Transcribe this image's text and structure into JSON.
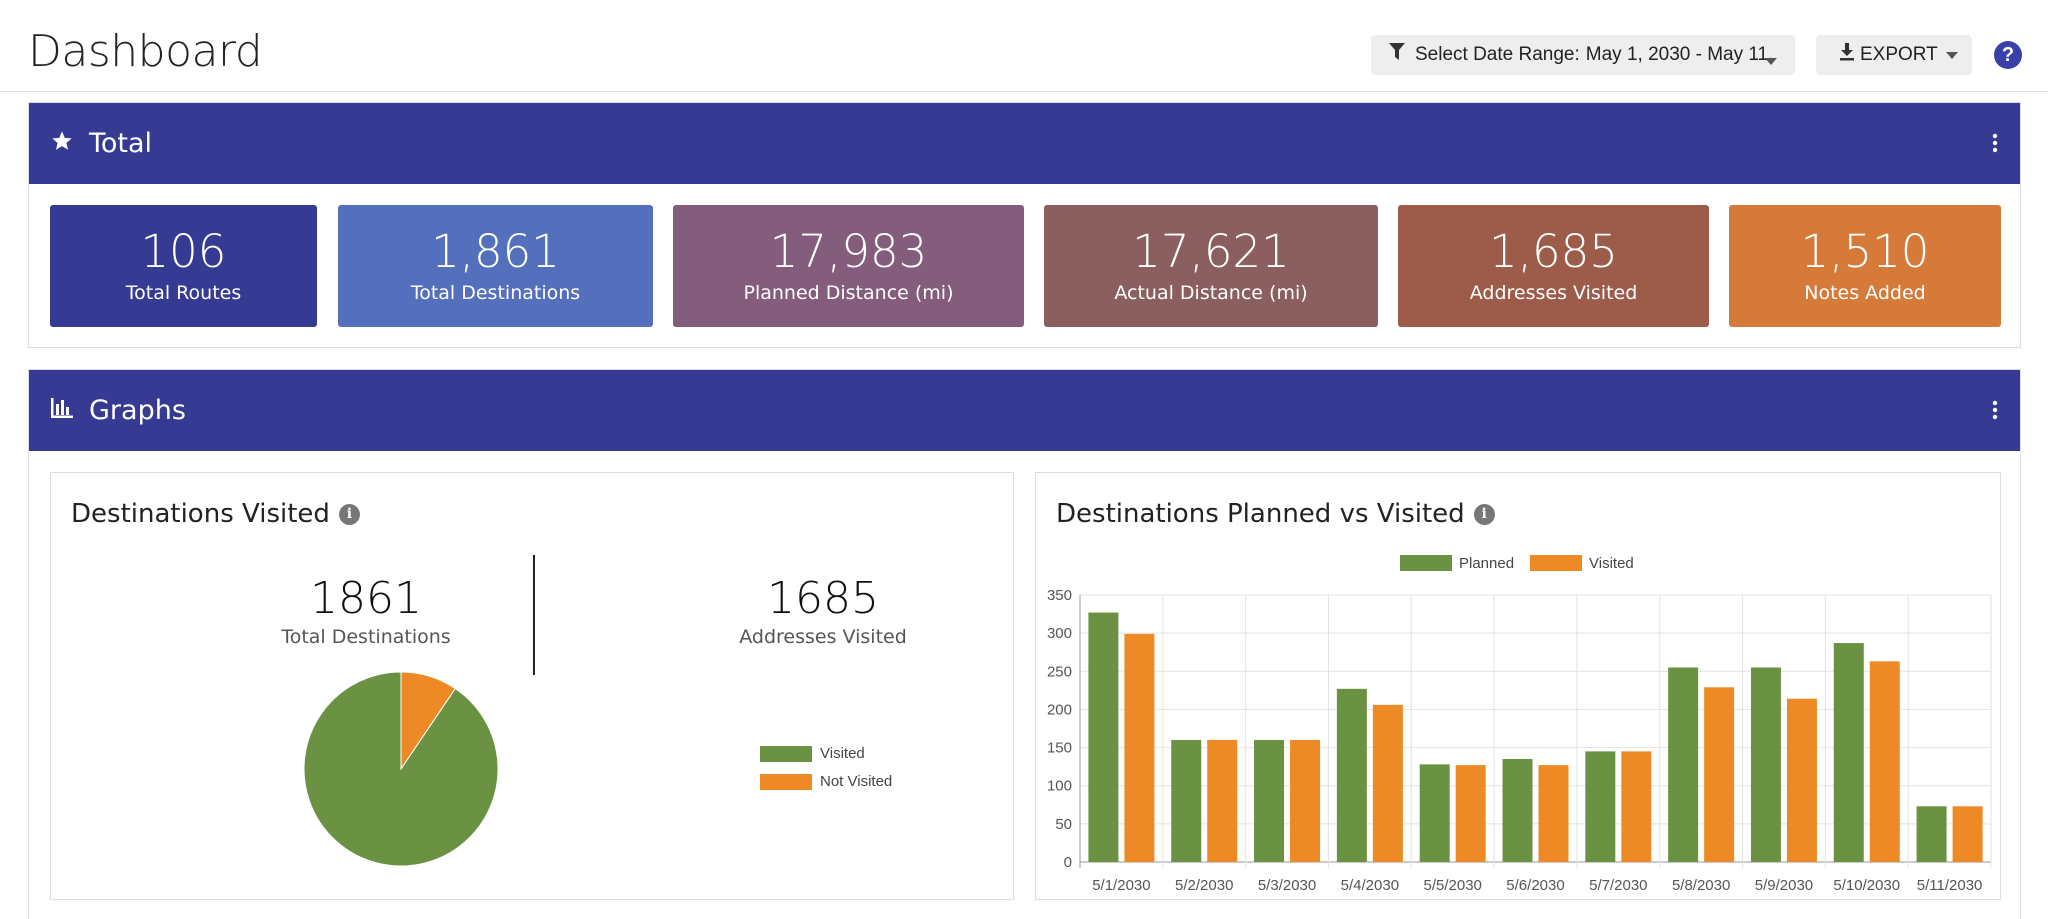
{
  "header": {
    "title": "Dashboard",
    "date_range_label": "Select Date Range:",
    "date_range_value": "May 1, 2030 - May 11,",
    "export_label": "EXPORT",
    "help_label": "?"
  },
  "total_panel": {
    "title": "Total",
    "stats": [
      {
        "value": "106",
        "label": "Total Routes",
        "color": "#353b92"
      },
      {
        "value": "1,861",
        "label": "Total Destinations",
        "color": "#5470bd"
      },
      {
        "value": "17,983",
        "label": "Planned Distance (mi)",
        "color": "#845c7c"
      },
      {
        "value": "17,621",
        "label": "Actual Distance (mi)",
        "color": "#8b5f5f"
      },
      {
        "value": "1,685",
        "label": "Addresses Visited",
        "color": "#9d5b4a"
      },
      {
        "value": "1,510",
        "label": "Notes Added",
        "color": "#d67a3a"
      }
    ]
  },
  "graphs_panel": {
    "title": "Graphs",
    "visited_card": {
      "title": "Destinations Visited",
      "total_value": "1861",
      "total_label": "Total Destinations",
      "visited_value": "1685",
      "visited_label": "Addresses Visited",
      "legend": [
        {
          "name": "Visited",
          "color": "#6b9142"
        },
        {
          "name": "Not Visited",
          "color": "#ee8a25"
        }
      ]
    },
    "planned_card": {
      "title": "Destinations Planned vs Visited"
    }
  },
  "chart_data": [
    {
      "type": "pie",
      "labels": [
        "Visited",
        "Not Visited"
      ],
      "values": [
        1685,
        176
      ],
      "colors": [
        "#6b9142",
        "#ee8a25"
      ]
    },
    {
      "type": "bar",
      "categories": [
        "5/1/2030",
        "5/2/2030",
        "5/3/2030",
        "5/4/2030",
        "5/5/2030",
        "5/6/2030",
        "5/7/2030",
        "5/8/2030",
        "5/9/2030",
        "5/10/2030",
        "5/11/2030"
      ],
      "series": [
        {
          "name": "Planned",
          "color": "#6b9142",
          "values": [
            327,
            160,
            160,
            227,
            128,
            135,
            145,
            255,
            255,
            287,
            73
          ]
        },
        {
          "name": "Visited",
          "color": "#ee8a25",
          "values": [
            299,
            160,
            160,
            206,
            127,
            127,
            145,
            229,
            214,
            263,
            73
          ]
        }
      ],
      "yticks": [
        "0",
        "50",
        "100",
        "150",
        "200",
        "250",
        "300",
        "350"
      ],
      "ylim": [
        0,
        350
      ],
      "grid": true,
      "legend": "top-center"
    }
  ]
}
